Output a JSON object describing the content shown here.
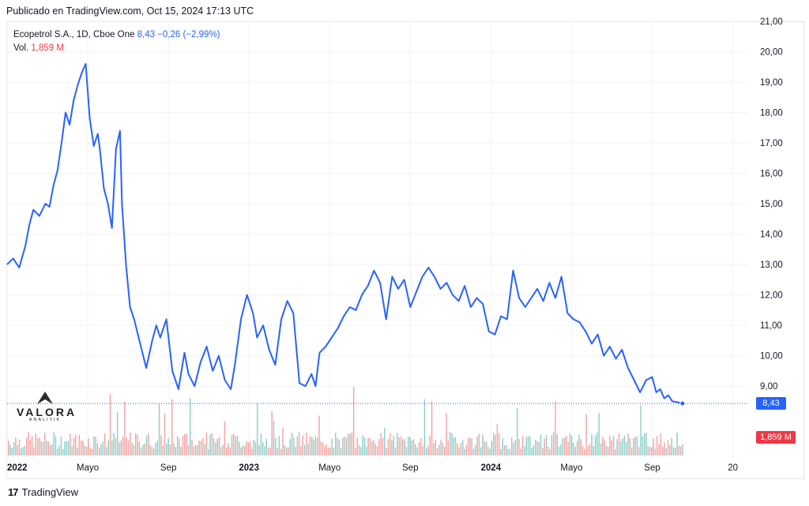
{
  "header": {
    "published": "Publicado en TradingView.com, Oct 15, 2024 17:13 UTC"
  },
  "legend": {
    "symbol": "Ecopetrol S.A., 1D, Cboe One",
    "last": "8,43",
    "change": "−0,26 (−2,99%)",
    "vol_label": "Vol.",
    "vol_value": "1,859 M"
  },
  "price_label": "8,43",
  "volume_label": "1,859 M",
  "watermark": {
    "name": "VALORA",
    "sub": "ANALITIK"
  },
  "footer": {
    "brand": "TradingView",
    "logo": "17"
  },
  "colors": {
    "line": "#2962ff",
    "vol_up": "#26a69a",
    "vol_down": "#ef5350",
    "grid": "#f0f3fa"
  },
  "chart_data": {
    "type": "line",
    "title": "",
    "series": [
      {
        "name": "Ecopetrol S.A.",
        "x_months": [
          0,
          0.3,
          0.6,
          0.9,
          1.1,
          1.3,
          1.6,
          1.9,
          2.1,
          2.3,
          2.5,
          2.7,
          2.9,
          3.1,
          3.3,
          3.5,
          3.7,
          3.9,
          4.1,
          4.3,
          4.5,
          4.6,
          4.8,
          5.0,
          5.2,
          5.4,
          5.6,
          5.7,
          5.9,
          6.1,
          6.3,
          6.6,
          6.9,
          7.2,
          7.4,
          7.6,
          7.9,
          8.2,
          8.5,
          8.8,
          9.0,
          9.3,
          9.6,
          9.9,
          10.2,
          10.5,
          10.8,
          11.1,
          11.3,
          11.6,
          11.9,
          12.2,
          12.4,
          12.7,
          13.0,
          13.3,
          13.6,
          13.9,
          14.2,
          14.5,
          14.8,
          15.1,
          15.3,
          15.5,
          15.8,
          16.1,
          16.4,
          16.7,
          17.0,
          17.3,
          17.6,
          17.9,
          18.2,
          18.5,
          18.8,
          19.1,
          19.4,
          19.7,
          20.0,
          20.3,
          20.6,
          20.9,
          21.2,
          21.5,
          21.8,
          22.1,
          22.4,
          22.7,
          23.0,
          23.3,
          23.6,
          23.9,
          24.2,
          24.5,
          24.8,
          25.1,
          25.4,
          25.7,
          26.0,
          26.3,
          26.6,
          26.9,
          27.2,
          27.5,
          27.8,
          28.1,
          28.4,
          28.7,
          29.0,
          29.3,
          29.6,
          29.9,
          30.2,
          30.5,
          30.8,
          31.1,
          31.4,
          31.7,
          32.0,
          32.2,
          32.4,
          32.6,
          32.8,
          33.0,
          33.2,
          33.4,
          33.5
        ],
        "values": [
          13.0,
          13.2,
          12.9,
          13.6,
          14.3,
          14.8,
          14.6,
          15.0,
          14.9,
          15.6,
          16.1,
          17.0,
          18.0,
          17.6,
          18.4,
          18.9,
          19.3,
          19.6,
          17.8,
          16.9,
          17.3,
          16.8,
          15.5,
          15.0,
          14.2,
          16.8,
          17.4,
          15.0,
          13.0,
          11.6,
          11.2,
          10.4,
          9.6,
          10.5,
          11.0,
          10.6,
          11.2,
          9.5,
          8.9,
          10.1,
          9.4,
          9.0,
          9.8,
          10.3,
          9.5,
          10.0,
          9.2,
          8.9,
          9.7,
          11.2,
          12.0,
          11.4,
          10.6,
          11.0,
          10.2,
          9.7,
          11.2,
          11.8,
          11.4,
          9.1,
          9.0,
          9.4,
          9.0,
          10.1,
          10.3,
          10.6,
          10.9,
          11.3,
          11.6,
          11.5,
          12.0,
          12.3,
          12.8,
          12.4,
          11.2,
          12.6,
          12.2,
          12.5,
          11.6,
          12.1,
          12.6,
          12.9,
          12.6,
          12.2,
          12.4,
          12.0,
          11.8,
          12.3,
          11.6,
          11.9,
          11.7,
          10.8,
          10.7,
          11.3,
          11.2,
          12.8,
          11.9,
          11.6,
          11.9,
          12.2,
          11.8,
          12.4,
          11.9,
          12.6,
          11.4,
          11.2,
          11.1,
          10.8,
          10.4,
          10.7,
          10.0,
          10.3,
          9.9,
          10.2,
          9.6,
          9.2,
          8.8,
          9.2,
          9.3,
          8.8,
          8.9,
          8.6,
          8.7,
          8.5,
          8.48,
          8.45,
          8.43
        ]
      }
    ],
    "y_ticks": [
      "21,00",
      "20,00",
      "19,00",
      "18,00",
      "17,00",
      "16,00",
      "15,00",
      "14,00",
      "13,00",
      "12,00",
      "11,00",
      "10,00",
      "9,00"
    ],
    "ylim": [
      8.2,
      21.0
    ],
    "x_ticks": [
      {
        "label": "2022",
        "month": 0,
        "bold": true
      },
      {
        "label": "Mayo",
        "month": 4,
        "bold": false
      },
      {
        "label": "Sep",
        "month": 8,
        "bold": false
      },
      {
        "label": "2023",
        "month": 12,
        "bold": true
      },
      {
        "label": "Mayo",
        "month": 16,
        "bold": false
      },
      {
        "label": "Sep",
        "month": 20,
        "bold": false
      },
      {
        "label": "2024",
        "month": 24,
        "bold": true
      },
      {
        "label": "Mayo",
        "month": 28,
        "bold": false
      },
      {
        "label": "Sep",
        "month": 32,
        "bold": false
      },
      {
        "label": "20",
        "month": 36,
        "bold": false
      }
    ],
    "xlim": [
      0,
      36.8
    ],
    "grid": true
  }
}
